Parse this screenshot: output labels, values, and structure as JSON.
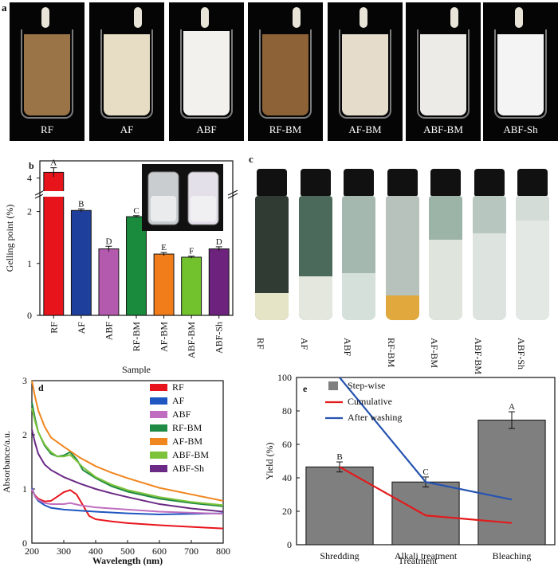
{
  "panel_a": {
    "letter": "a",
    "beakers": [
      {
        "label": "RF",
        "color": "#9a7446"
      },
      {
        "label": "AF",
        "color": "#e7dcc4"
      },
      {
        "label": "ABF",
        "color": "#f2f1ee"
      },
      {
        "label": "RF-BM",
        "color": "#8c6236"
      },
      {
        "label": "AF-BM",
        "color": "#e5dccb"
      },
      {
        "label": "ABF-BM",
        "color": "#ecebe8"
      },
      {
        "label": "ABF-Sh",
        "color": "#f4f4f4"
      }
    ]
  },
  "chart_data": [
    {
      "id": "b",
      "type": "bar",
      "panel_letter": "b",
      "categories": [
        "RF",
        "AF",
        "ABF",
        "RF-BM",
        "AF-BM",
        "ABF-BM",
        "ABF-Sh"
      ],
      "values": [
        4.1,
        2.02,
        1.28,
        1.9,
        1.18,
        1.12,
        1.28
      ],
      "errors": [
        0.08,
        0.03,
        0.05,
        0.02,
        0.03,
        0.02,
        0.04
      ],
      "letters": [
        "A",
        "B",
        "D",
        "C",
        "E",
        "F",
        "D"
      ],
      "colors": [
        "#e8141c",
        "#1f3f9c",
        "#b35aaf",
        "#1a8a3c",
        "#f07d1a",
        "#72c22e",
        "#6d237e"
      ],
      "xlabel": "Sample",
      "ylabel": "Gelling point (%)",
      "ylim": [
        0,
        4.3
      ],
      "yticks": [
        "0",
        "1",
        "2",
        "4"
      ],
      "axis_break": true
    },
    {
      "id": "d",
      "type": "line",
      "panel_letter": "d",
      "xlabel": "Wavelength (nm)",
      "ylabel": "Absorbance/a.u.",
      "xlim": [
        200,
        800
      ],
      "ylim": [
        0,
        3
      ],
      "xticks": [
        200,
        300,
        400,
        500,
        600,
        700,
        800
      ],
      "yticks": [
        0,
        1,
        2,
        3
      ],
      "series": [
        {
          "name": "RF",
          "color": "#e8141c",
          "x": [
            200,
            210,
            220,
            240,
            260,
            280,
            300,
            320,
            340,
            360,
            380,
            400,
            450,
            500,
            600,
            700,
            800
          ],
          "y": [
            0.98,
            0.88,
            0.82,
            0.77,
            0.78,
            0.86,
            0.94,
            0.98,
            0.9,
            0.7,
            0.5,
            0.44,
            0.4,
            0.37,
            0.33,
            0.3,
            0.27
          ]
        },
        {
          "name": "AF",
          "color": "#1f56c1",
          "x": [
            200,
            210,
            220,
            240,
            260,
            300,
            350,
            400,
            500,
            600,
            700,
            800
          ],
          "y": [
            1.02,
            0.86,
            0.78,
            0.7,
            0.65,
            0.62,
            0.6,
            0.58,
            0.55,
            0.53,
            0.54,
            0.55
          ]
        },
        {
          "name": "ABF",
          "color": "#c06fc0",
          "x": [
            200,
            210,
            220,
            240,
            260,
            300,
            320,
            350,
            400,
            500,
            600,
            700,
            800
          ],
          "y": [
            1.0,
            0.86,
            0.8,
            0.74,
            0.72,
            0.72,
            0.74,
            0.7,
            0.66,
            0.62,
            0.58,
            0.56,
            0.54
          ]
        },
        {
          "name": "RF-BM",
          "color": "#1f8a43",
          "x": [
            200,
            210,
            220,
            240,
            260,
            280,
            300,
            320,
            340,
            360,
            400,
            450,
            500,
            600,
            700,
            800
          ],
          "y": [
            2.6,
            2.3,
            2.05,
            1.8,
            1.65,
            1.6,
            1.62,
            1.68,
            1.55,
            1.35,
            1.2,
            1.05,
            0.95,
            0.82,
            0.74,
            0.68
          ]
        },
        {
          "name": "AF-BM",
          "color": "#f0861e",
          "x": [
            200,
            210,
            220,
            240,
            260,
            300,
            350,
            400,
            450,
            500,
            600,
            700,
            800
          ],
          "y": [
            3.0,
            2.7,
            2.45,
            2.15,
            1.95,
            1.78,
            1.58,
            1.42,
            1.3,
            1.2,
            1.02,
            0.9,
            0.78
          ]
        },
        {
          "name": "ABF-BM",
          "color": "#7cc23a",
          "x": [
            200,
            210,
            220,
            240,
            260,
            280,
            300,
            320,
            340,
            360,
            400,
            450,
            500,
            600,
            700,
            800
          ],
          "y": [
            2.5,
            2.25,
            2.05,
            1.82,
            1.68,
            1.6,
            1.6,
            1.63,
            1.52,
            1.4,
            1.22,
            1.08,
            0.98,
            0.85,
            0.76,
            0.7
          ]
        },
        {
          "name": "ABF-Sh",
          "color": "#6a2a85",
          "x": [
            200,
            210,
            220,
            240,
            260,
            300,
            350,
            400,
            450,
            500,
            600,
            700,
            800
          ],
          "y": [
            2.1,
            1.85,
            1.65,
            1.45,
            1.35,
            1.22,
            1.1,
            1.0,
            0.92,
            0.85,
            0.72,
            0.64,
            0.58
          ]
        }
      ]
    },
    {
      "id": "e",
      "type": "bar",
      "panel_letter": "e",
      "categories": [
        "Shredding",
        "Alkali treatment",
        "Bleaching"
      ],
      "xlabel": "Treatment",
      "ylabel": "Yield (%)",
      "ylim": [
        0,
        100
      ],
      "yticks": [
        0,
        20,
        40,
        60,
        80,
        100
      ],
      "bar_series": {
        "name": "Step-wise",
        "color": "#7f7f7f",
        "values": [
          46.5,
          37.5,
          74.5
        ],
        "errors": [
          3,
          3,
          5
        ],
        "letters": [
          "B",
          "C",
          "A"
        ]
      },
      "line_series": [
        {
          "name": "Cumulative",
          "color": "#e31a1c",
          "values": [
            46.5,
            17.5,
            13
          ]
        },
        {
          "name": "After washing",
          "color": "#2654b0",
          "values": [
            100,
            37.5,
            27
          ]
        }
      ]
    }
  ],
  "panel_c": {
    "letter": "c",
    "vials": [
      {
        "label": "RF",
        "top_color": "#2f3b33",
        "bottom_color": "#e6e4c6",
        "split": 0.78
      },
      {
        "label": "AF",
        "top_color": "#4c6a5b",
        "bottom_color": "#e3e7dd",
        "split": 0.65
      },
      {
        "label": "ABF",
        "top_color": "#a4b8b0",
        "bottom_color": "#d5e0db",
        "split": 0.62
      },
      {
        "label": "RF-BM",
        "top_color": "#b6c2bb",
        "bottom_color": "#e1a93d",
        "split": 0.8
      },
      {
        "label": "AF-BM",
        "top_color": "#9cb3a8",
        "bottom_color": "#dfe4dc",
        "split": 0.35
      },
      {
        "label": "ABF-BM",
        "top_color": "#b7c6bf",
        "bottom_color": "#dde4e0",
        "split": 0.3
      },
      {
        "label": "ABF-Sh",
        "top_color": "#d4dcd7",
        "bottom_color": "#e3e8e5",
        "split": 0.2
      }
    ]
  }
}
